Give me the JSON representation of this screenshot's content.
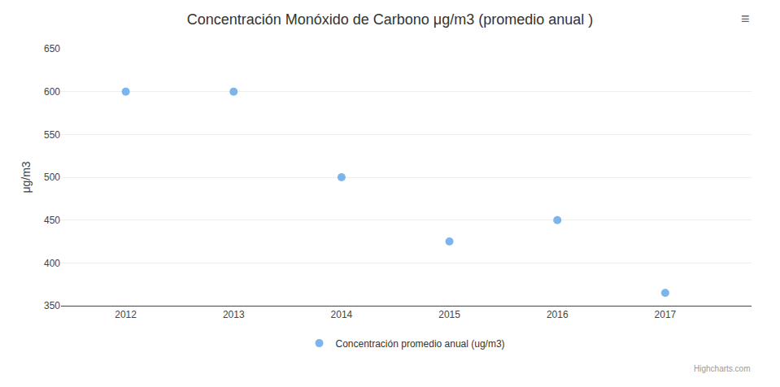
{
  "chart_data": {
    "type": "scatter",
    "title": "Concentración Monóxido de Carbono μg/m3 (promedio anual )",
    "ylabel": "μg/m3",
    "x": [
      2012,
      2013,
      2014,
      2015,
      2016,
      2017
    ],
    "series": [
      {
        "name": "Concentración promedio anual (ug/m3)",
        "color": "#7cb5ec",
        "values": [
          600,
          600,
          500,
          425,
          450,
          365
        ]
      }
    ],
    "xlim": [
      2011.4,
      2017.8
    ],
    "xticks": [
      2012,
      2013,
      2014,
      2015,
      2016,
      2017
    ],
    "ylim": [
      350,
      650
    ],
    "yticks": [
      350,
      400,
      450,
      500,
      550,
      600,
      650
    ],
    "grid": "y",
    "legend": "bottom",
    "marker": "circle",
    "annotations": [
      "Highcharts.com",
      "≡"
    ]
  }
}
